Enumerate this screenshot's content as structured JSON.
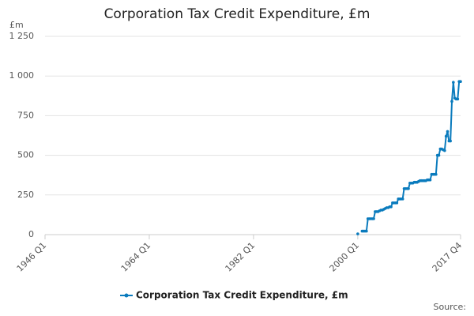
{
  "chart_data": {
    "type": "line",
    "title": "Corporation Tax Credit Expenditure, £m",
    "y_label": "£m",
    "source": "Source:",
    "categories": [
      "1946 Q1",
      null,
      null,
      null,
      null,
      null,
      null,
      null,
      null,
      null,
      null,
      null,
      null,
      null,
      null,
      null,
      null,
      null,
      null,
      null,
      null,
      null,
      null,
      null,
      null,
      null,
      null,
      null,
      null,
      null,
      null,
      null,
      null,
      null,
      null,
      null,
      null,
      null,
      null,
      null,
      null,
      null,
      null,
      null,
      null,
      null,
      null,
      null,
      null,
      null,
      null,
      null,
      null,
      null,
      null,
      null,
      null,
      null,
      null,
      null,
      null,
      null,
      null,
      null,
      null,
      null,
      null,
      null,
      null,
      null,
      null,
      null,
      "1964 Q1",
      null,
      null,
      null,
      null,
      null,
      null,
      null,
      null,
      null,
      null,
      null,
      null,
      null,
      null,
      null,
      null,
      null,
      null,
      null,
      null,
      null,
      null,
      null,
      null,
      null,
      null,
      null,
      null,
      null,
      null,
      null,
      null,
      null,
      null,
      null,
      null,
      null,
      null,
      null,
      null,
      null,
      null,
      null,
      null,
      null,
      null,
      null,
      null,
      null,
      null,
      null,
      null,
      null,
      null,
      null,
      null,
      null,
      null,
      null,
      null,
      null,
      null,
      null,
      null,
      null,
      null,
      null,
      null,
      null,
      null,
      null,
      "1982 Q1",
      null,
      null,
      null,
      null,
      null,
      null,
      null,
      null,
      null,
      null,
      null,
      null,
      null,
      null,
      null,
      null,
      null,
      null,
      null,
      null,
      null,
      null,
      null,
      null,
      null,
      null,
      null,
      null,
      null,
      null,
      null,
      null,
      null,
      null,
      null,
      null,
      null,
      null,
      null,
      null,
      null,
      null,
      null,
      null,
      null,
      null,
      null,
      null,
      null,
      null,
      null,
      null,
      null,
      null,
      null,
      null,
      null,
      null,
      null,
      null,
      null,
      null,
      null,
      null,
      null,
      null,
      null,
      null,
      null,
      null,
      null,
      "2000 Q1",
      null,
      null,
      null,
      null,
      null,
      null,
      null,
      null,
      null,
      null,
      null,
      null,
      null,
      null,
      null,
      null,
      null,
      null,
      null,
      null,
      null,
      null,
      null,
      null,
      null,
      null,
      null,
      null,
      null,
      null,
      null,
      null,
      null,
      null,
      null,
      null,
      null,
      null,
      null,
      null,
      null,
      null,
      null,
      null,
      null,
      null,
      null,
      null,
      null,
      null,
      null,
      null,
      null,
      null,
      null,
      null,
      null,
      null,
      null,
      null,
      null,
      null,
      null,
      null,
      null,
      null,
      null,
      null,
      null,
      null,
      "2017 Q4"
    ],
    "series": [
      {
        "name": "Corporation Tax Credit Expenditure, £m",
        "color": "#0a7bbd",
        "values": [
          null,
          null,
          null,
          null,
          null,
          null,
          null,
          null,
          null,
          null,
          null,
          null,
          null,
          null,
          null,
          null,
          null,
          null,
          null,
          null,
          null,
          null,
          null,
          null,
          null,
          null,
          null,
          null,
          null,
          null,
          null,
          null,
          null,
          null,
          null,
          null,
          null,
          null,
          null,
          null,
          null,
          null,
          null,
          null,
          null,
          null,
          null,
          null,
          null,
          null,
          null,
          null,
          null,
          null,
          null,
          null,
          null,
          null,
          null,
          null,
          null,
          null,
          null,
          null,
          null,
          null,
          null,
          null,
          null,
          null,
          null,
          null,
          null,
          null,
          null,
          null,
          null,
          null,
          null,
          null,
          null,
          null,
          null,
          null,
          null,
          null,
          null,
          null,
          null,
          null,
          null,
          null,
          null,
          null,
          null,
          null,
          null,
          null,
          null,
          null,
          null,
          null,
          null,
          null,
          null,
          null,
          null,
          null,
          null,
          null,
          null,
          null,
          null,
          null,
          null,
          null,
          null,
          null,
          null,
          null,
          null,
          null,
          null,
          null,
          null,
          null,
          null,
          null,
          null,
          null,
          null,
          null,
          null,
          null,
          null,
          null,
          null,
          null,
          null,
          null,
          null,
          null,
          null,
          null,
          null,
          null,
          null,
          null,
          null,
          null,
          null,
          null,
          null,
          null,
          null,
          null,
          null,
          null,
          null,
          null,
          null,
          null,
          null,
          null,
          null,
          null,
          null,
          null,
          null,
          null,
          null,
          null,
          null,
          null,
          null,
          null,
          null,
          null,
          null,
          null,
          null,
          null,
          null,
          null,
          null,
          null,
          null,
          null,
          null,
          null,
          null,
          null,
          null,
          null,
          null,
          null,
          null,
          null,
          null,
          null,
          null,
          null,
          null,
          null,
          null,
          null,
          null,
          null,
          null,
          null,
          null,
          null,
          null,
          null,
          null,
          null,
          5,
          null,
          null,
          22,
          22,
          22,
          22,
          100,
          100,
          100,
          100,
          100,
          145,
          145,
          145,
          150,
          155,
          155,
          160,
          165,
          170,
          170,
          175,
          175,
          200,
          200,
          200,
          200,
          225,
          225,
          225,
          225,
          290,
          290,
          290,
          290,
          325,
          325,
          325,
          330,
          330,
          330,
          335,
          340,
          340,
          340,
          340,
          340,
          345,
          345,
          345,
          380,
          380,
          380,
          380,
          500,
          500,
          540,
          540,
          535,
          530,
          620,
          650,
          590,
          590,
          840,
          960,
          860,
          855,
          855,
          965,
          965
        ]
      }
    ],
    "ylim": [
      0,
      1250
    ],
    "yticks": [
      0,
      250,
      500,
      750,
      {
        "value": 1000,
        "label": "1 000"
      },
      {
        "value": 1250,
        "label": "1 250"
      }
    ],
    "grid": true,
    "legend": "bottom"
  }
}
